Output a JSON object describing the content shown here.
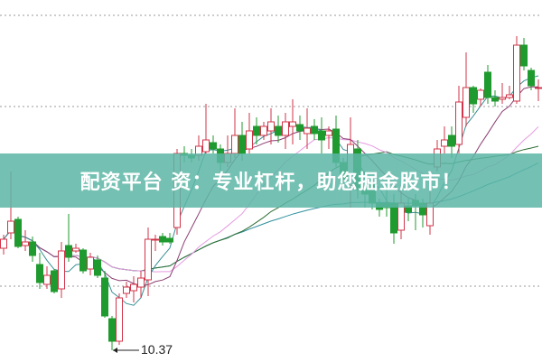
{
  "banner": {
    "text": "配资平台 资：专业杠杆，助您掘金股市！",
    "color": "#5cb6a6"
  },
  "chart_data": {
    "type": "candlestick",
    "title": "",
    "xlabel": "",
    "ylabel": "",
    "ylim": [
      10.24,
      14.25
    ],
    "grid": "horizontal-dotted",
    "gridlines": [
      14.08,
      13.07,
      11.08
    ],
    "low_annotation": {
      "label": "10.37",
      "value": 10.37
    },
    "colors": {
      "up": "#d2344a",
      "down": "#1f9a2e",
      "ma5": "#3a8f95",
      "ma10": "#8b3e72",
      "ma20": "#e59ae0",
      "ma30": "#2f6f34",
      "ma60": "#2f8f9e"
    },
    "moving_averages": [
      5,
      10,
      20,
      30,
      60
    ],
    "candles": [
      [
        11.5,
        11.6,
        11.65,
        11.43
      ],
      [
        11.67,
        11.8,
        12.35,
        11.6
      ],
      [
        11.82,
        11.52,
        11.85,
        11.5
      ],
      [
        11.53,
        11.57,
        11.7,
        11.47
      ],
      [
        11.57,
        11.42,
        11.63,
        11.35
      ],
      [
        11.32,
        11.12,
        11.45,
        11.05
      ],
      [
        11.1,
        11.2,
        11.3,
        11.05
      ],
      [
        11.25,
        11.02,
        11.27,
        11.0
      ],
      [
        11.05,
        11.47,
        11.57,
        10.95
      ],
      [
        11.53,
        11.4,
        11.88,
        11.35
      ],
      [
        11.47,
        11.5,
        11.55,
        11.45
      ],
      [
        11.48,
        11.25,
        11.5,
        11.22
      ],
      [
        11.27,
        11.4,
        11.45,
        11.2
      ],
      [
        11.37,
        11.2,
        11.42,
        11.17
      ],
      [
        11.17,
        10.75,
        11.25,
        10.73
      ],
      [
        10.72,
        10.47,
        10.75,
        10.37
      ],
      [
        10.47,
        10.95,
        11.0,
        10.43
      ],
      [
        11.0,
        11.07,
        11.13,
        10.95
      ],
      [
        11.03,
        11.1,
        11.19,
        10.9
      ],
      [
        11.07,
        11.17,
        11.25,
        10.95
      ],
      [
        11.15,
        11.6,
        11.73,
        10.97
      ],
      [
        11.6,
        11.6,
        11.65,
        11.47
      ],
      [
        11.63,
        11.57,
        11.67,
        11.53
      ],
      [
        11.61,
        11.57,
        11.67,
        11.55
      ],
      [
        11.73,
        12.55,
        12.6,
        11.65
      ],
      [
        12.55,
        12.53,
        12.63,
        12.45
      ],
      [
        12.53,
        12.5,
        12.6,
        12.45
      ],
      [
        12.53,
        12.63,
        12.75,
        12.47
      ],
      [
        12.57,
        12.7,
        13.1,
        12.55
      ],
      [
        12.67,
        12.6,
        12.75,
        12.55
      ],
      [
        12.6,
        12.45,
        12.65,
        12.25
      ],
      [
        12.45,
        12.55,
        12.75,
        12.4
      ],
      [
        12.55,
        12.75,
        13.05,
        12.5
      ],
      [
        12.75,
        12.55,
        12.9,
        12.47
      ],
      [
        12.6,
        12.8,
        13.0,
        12.55
      ],
      [
        12.85,
        12.75,
        12.95,
        12.65
      ],
      [
        12.75,
        12.85,
        12.9,
        12.7
      ],
      [
        12.8,
        12.9,
        13.05,
        12.65
      ],
      [
        12.85,
        12.75,
        12.97,
        12.67
      ],
      [
        12.75,
        12.9,
        13.0,
        12.6
      ],
      [
        12.85,
        12.9,
        13.15,
        12.65
      ],
      [
        12.87,
        12.8,
        12.97,
        12.7
      ],
      [
        12.77,
        12.83,
        13.05,
        12.6
      ],
      [
        12.85,
        12.77,
        12.93,
        12.7
      ],
      [
        12.8,
        12.7,
        12.95,
        12.55
      ],
      [
        12.75,
        12.8,
        12.85,
        12.6
      ],
      [
        12.82,
        12.45,
        12.97,
        12.4
      ],
      [
        12.45,
        12.25,
        12.5,
        12.15
      ],
      [
        12.2,
        12.65,
        12.95,
        11.95
      ],
      [
        12.6,
        12.15,
        12.7,
        12.05
      ],
      [
        12.15,
        12.1,
        12.35,
        11.95
      ],
      [
        12.2,
        12.0,
        12.3,
        11.93
      ],
      [
        12.0,
        11.93,
        12.05,
        11.85
      ],
      [
        12.0,
        11.95,
        12.15,
        11.85
      ],
      [
        12.0,
        11.67,
        12.1,
        11.55
      ],
      [
        11.7,
        12.0,
        12.2,
        11.6
      ],
      [
        11.97,
        11.9,
        12.05,
        11.8
      ],
      [
        12.03,
        11.97,
        12.1,
        11.7
      ],
      [
        12.0,
        11.87,
        12.05,
        11.73
      ],
      [
        11.75,
        12.0,
        12.3,
        11.65
      ],
      [
        12.4,
        12.6,
        12.7,
        12.35
      ],
      [
        12.63,
        12.7,
        12.85,
        12.55
      ],
      [
        12.75,
        12.63,
        12.85,
        12.5
      ],
      [
        12.65,
        13.12,
        13.3,
        12.55
      ],
      [
        12.95,
        13.28,
        13.67,
        12.85
      ],
      [
        13.28,
        13.1,
        13.3,
        13.0
      ],
      [
        13.15,
        13.25,
        13.27,
        13.07
      ],
      [
        13.45,
        13.17,
        13.53,
        13.1
      ],
      [
        13.17,
        13.13,
        13.25,
        13.07
      ],
      [
        13.15,
        13.17,
        13.33,
        13.1
      ],
      [
        13.17,
        13.2,
        13.3,
        13.15
      ],
      [
        13.13,
        13.75,
        13.85,
        13.1
      ],
      [
        13.75,
        13.52,
        13.83,
        13.47
      ],
      [
        13.47,
        13.3,
        13.5,
        13.25
      ],
      [
        13.28,
        13.28,
        13.37,
        13.13
      ]
    ]
  }
}
